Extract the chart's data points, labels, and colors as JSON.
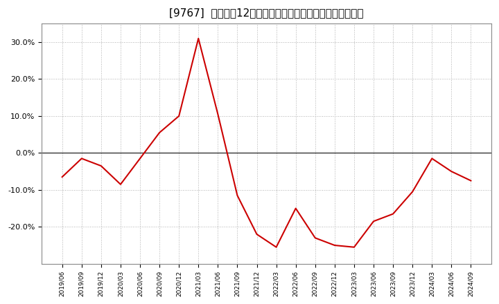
{
  "title": "[9767]  売上高の12か月移動合計の対前年同期増減率の推移",
  "line_color": "#cc0000",
  "background_color": "#ffffff",
  "grid_color": "#b0b0b0",
  "zero_line_color": "#333333",
  "dates": [
    "2019/06",
    "2019/09",
    "2019/12",
    "2020/03",
    "2020/06",
    "2020/09",
    "2020/12",
    "2021/03",
    "2021/06",
    "2021/09",
    "2021/12",
    "2022/03",
    "2022/06",
    "2022/09",
    "2022/12",
    "2023/03",
    "2023/06",
    "2023/09",
    "2023/12",
    "2024/03",
    "2024/06",
    "2024/09"
  ],
  "values": [
    -6.5,
    -1.5,
    -3.5,
    -8.5,
    -1.5,
    5.5,
    10.0,
    31.0,
    10.5,
    -11.5,
    -22.0,
    -25.5,
    -15.0,
    -23.0,
    -25.0,
    -25.5,
    -18.5,
    -16.5,
    -10.5,
    -1.5,
    -5.0,
    -7.5
  ],
  "ylim": [
    -30,
    35
  ],
  "yticks": [
    -20,
    -10,
    0,
    10,
    20,
    30
  ],
  "ytick_labels": [
    "-20.0%",
    "-10.0%",
    "0.0%",
    "10.0%",
    "20.0%",
    "30.0%"
  ]
}
